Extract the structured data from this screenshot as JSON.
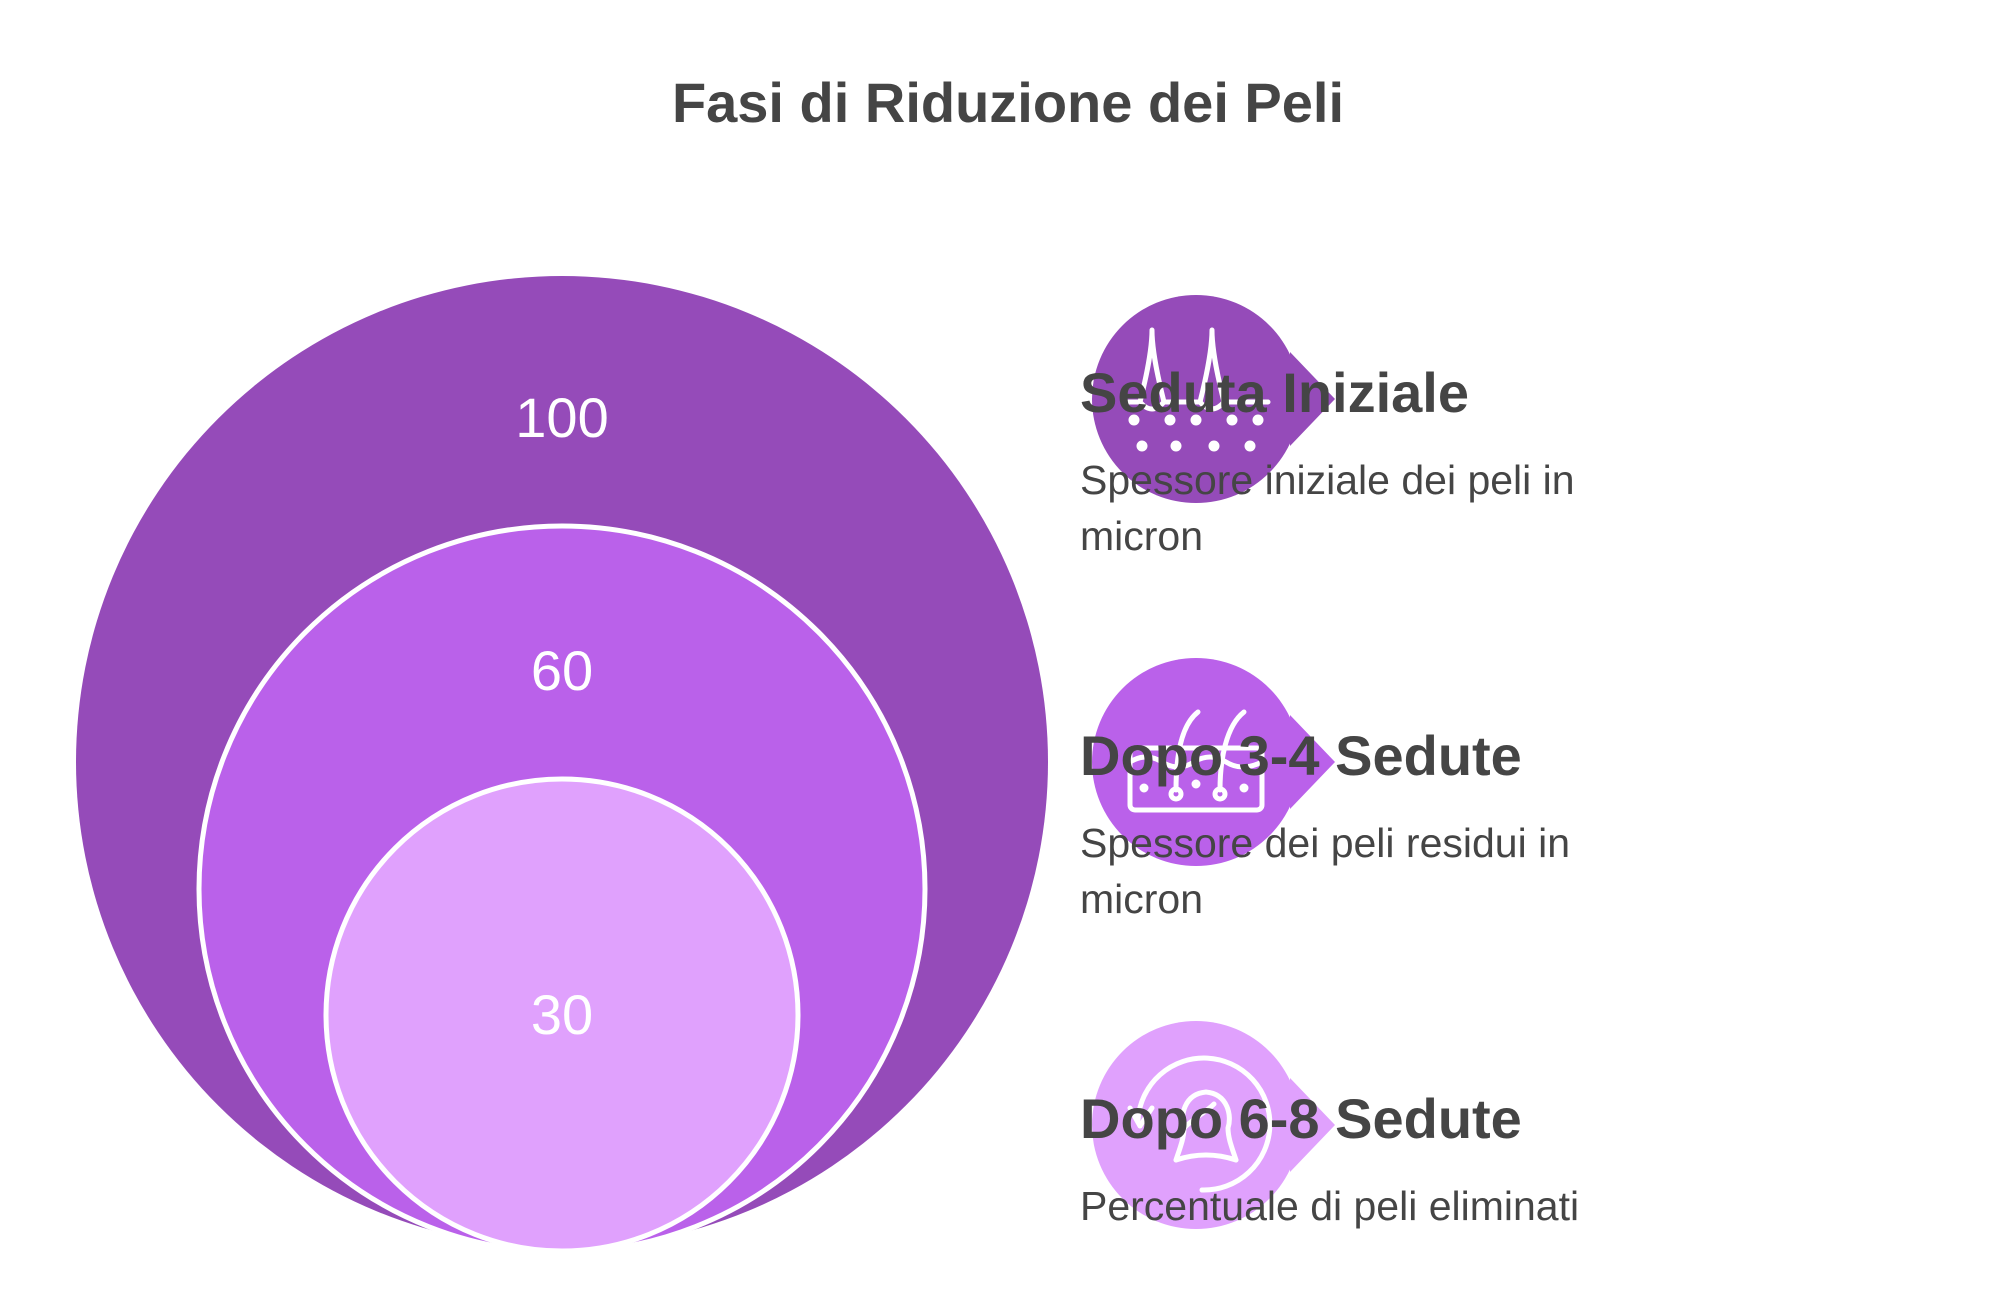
{
  "title": "Fasi di Riduzione dei Peli",
  "colors": {
    "outer": "#954BB9",
    "middle": "#BA61EA",
    "inner": "#E0A1FD",
    "text": "#454545",
    "white": "#FFFFFF"
  },
  "circles": [
    {
      "value": "100"
    },
    {
      "value": "60"
    },
    {
      "value": "30"
    }
  ],
  "stages": [
    {
      "icon": "hair-follicle-icon",
      "title": "Seduta Iniziale",
      "description": "Spessore iniziale dei peli in micron"
    },
    {
      "icon": "skin-layers-hair-icon",
      "title": "Dopo 3-4 Sedute",
      "description": "Spessore dei peli residui in micron"
    },
    {
      "icon": "head-rotation-icon",
      "title": "Dopo 6-8 Sedute",
      "description": "Percentuale di peli eliminati"
    }
  ]
}
